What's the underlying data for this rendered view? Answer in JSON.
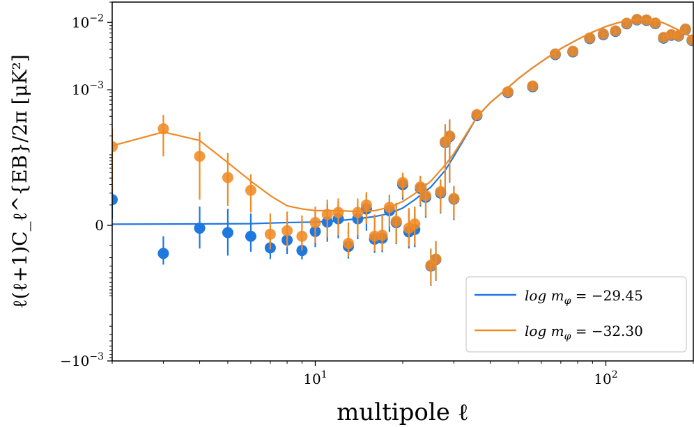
{
  "chart_data": {
    "type": "scatter",
    "xlabel": "multipole ℓ",
    "ylabel": "ℓ(ℓ+1)C_ℓ^{EB}/2π [μK²]",
    "x_scale": "log",
    "y_scale": "symlog",
    "xlim": [
      2,
      200
    ],
    "ylim": [
      -0.001,
      0.02
    ],
    "grid": false,
    "legend_position": "lower-right",
    "x_ticks": [
      {
        "value": 10,
        "base": "10",
        "exp": "1"
      },
      {
        "value": 100,
        "base": "10",
        "exp": "2"
      }
    ],
    "y_ticks": [
      {
        "value": 0.01,
        "base": "10",
        "exp": "−2"
      },
      {
        "value": 0.001,
        "base": "10",
        "exp": "−3"
      },
      {
        "value": 0,
        "base": "0",
        "exp": ""
      },
      {
        "value": -0.001,
        "base": "−10",
        "exp": "−3"
      }
    ],
    "series": [
      {
        "name": "log m_φ = −29.45",
        "legend_label": "log m",
        "legend_sub": "φ",
        "legend_value": " = −29.45",
        "color": "#1f77e0",
        "model_x": [
          2,
          4,
          6,
          8,
          10,
          12,
          14,
          16,
          18,
          20,
          22,
          25,
          28,
          30,
          33,
          36,
          40,
          45,
          50,
          56,
          63,
          70,
          80,
          90,
          100,
          110,
          120,
          130,
          140,
          150,
          160,
          175,
          190,
          200
        ],
        "model_y": [
          4e-07,
          5e-07,
          6e-07,
          1e-06,
          1.2e-06,
          1.7e-06,
          2.5e-06,
          3.5e-06,
          5e-06,
          8e-06,
          1.4e-05,
          2.7e-05,
          5.5e-05,
          9.5e-05,
          0.0002,
          0.00039,
          0.00064,
          0.00099,
          0.00147,
          0.00213,
          0.00302,
          0.0041,
          0.0056,
          0.0072,
          0.0087,
          0.0099,
          0.0107,
          0.0111,
          0.0111,
          0.0106,
          0.0096,
          0.008,
          0.0066,
          0.006
        ],
        "points": [
          {
            "x": 2,
            "y": 1.4e-05,
            "lo": 2.5e-06,
            "hi": 2.8e-05
          },
          {
            "x": 3,
            "y": -1.6e-05,
            "lo": -2.8e-05,
            "hi": -4.5e-06
          },
          {
            "x": 4,
            "y": -1e-06,
            "lo": -1.2e-05,
            "hi": 9e-06
          },
          {
            "x": 5,
            "y": -2.8e-06,
            "lo": -1.8e-05,
            "hi": 7.5e-06
          },
          {
            "x": 6,
            "y": -4.5e-06,
            "lo": -1.45e-05,
            "hi": 5e-06
          },
          {
            "x": 7,
            "y": -1.15e-05,
            "lo": -2.15e-05,
            "hi": -2e-06
          },
          {
            "x": 8,
            "y": -6.5e-06,
            "lo": -1.65e-05,
            "hi": 3e-06
          },
          {
            "x": 9,
            "y": -1.35e-05,
            "lo": -2.2e-05,
            "hi": -5e-06
          },
          {
            "x": 10,
            "y": -2.3e-06,
            "lo": -1.1e-05,
            "hi": 7e-06
          },
          {
            "x": 11,
            "y": 1.2e-06,
            "lo": -7.5e-06,
            "hi": 1.1e-05
          },
          {
            "x": 12,
            "y": 2.5e-06,
            "lo": -5.5e-06,
            "hi": 1.2e-05
          },
          {
            "x": 13,
            "y": -1.05e-05,
            "lo": -2.1e-05,
            "hi": -1.5e-06
          },
          {
            "x": 14,
            "y": 2.5e-06,
            "lo": -6e-06,
            "hi": 1.15e-05
          },
          {
            "x": 15,
            "y": 7.5e-06,
            "lo": -2e-06,
            "hi": 1.9e-05
          },
          {
            "x": 16,
            "y": -6e-06,
            "lo": -1.55e-05,
            "hi": 3.5e-06
          },
          {
            "x": 17,
            "y": -5.5e-06,
            "lo": -1.5e-05,
            "hi": 4e-06
          },
          {
            "x": 18,
            "y": 6.5e-06,
            "lo": -2.5e-06,
            "hi": 1.8e-05
          },
          {
            "x": 19,
            "y": 1e-06,
            "lo": -9e-06,
            "hi": 1.1e-05
          },
          {
            "x": 20,
            "y": 3e-05,
            "lo": 1.4e-05,
            "hi": 4.6e-05
          },
          {
            "x": 21,
            "y": -2.5e-06,
            "lo": -1.2e-05,
            "hi": 6.5e-06
          },
          {
            "x": 22,
            "y": -1.5e-06,
            "lo": -1.1e-05,
            "hi": 7.5e-06
          },
          {
            "x": 23,
            "y": 2.5e-05,
            "lo": 9e-06,
            "hi": 4.2e-05
          },
          {
            "x": 24,
            "y": 1.6e-05,
            "lo": 3e-06,
            "hi": 3e-05
          },
          {
            "x": 25,
            "y": -3e-05,
            "lo": -6.8e-05,
            "hi": -1.3e-05
          },
          {
            "x": 26,
            "y": -2.2e-05,
            "lo": -5.6e-05,
            "hi": -7.5e-06
          },
          {
            "x": 27,
            "y": 2e-05,
            "lo": 5e-06,
            "hi": 3.6e-05
          },
          {
            "x": 28,
            "y": 0.000158,
            "lo": 2.3e-05,
            "hi": 0.0003
          },
          {
            "x": 29,
            "y": 0.000195,
            "lo": 3.3e-05,
            "hi": 0.000357
          },
          {
            "x": 30,
            "y": 1.45e-05,
            "lo": 2e-06,
            "hi": 2.8e-05
          },
          {
            "x": 36,
            "y": 0.00041,
            "lo": 0.00036,
            "hi": 0.00046
          },
          {
            "x": 46,
            "y": 0.00091,
            "lo": 0.00075,
            "hi": 0.00107
          },
          {
            "x": 56,
            "y": 0.00111,
            "lo": 0.00093,
            "hi": 0.00129
          },
          {
            "x": 67,
            "y": 0.00334,
            "lo": 0.0029,
            "hi": 0.0038
          },
          {
            "x": 77,
            "y": 0.00366,
            "lo": 0.0032,
            "hi": 0.0041
          },
          {
            "x": 88,
            "y": 0.00577,
            "lo": 0.0051,
            "hi": 0.0065
          },
          {
            "x": 98,
            "y": 0.0066,
            "lo": 0.0059,
            "hi": 0.0073
          },
          {
            "x": 108,
            "y": 0.00735,
            "lo": 0.0066,
            "hi": 0.0081
          },
          {
            "x": 118,
            "y": 0.00955,
            "lo": 0.0086,
            "hi": 0.0105
          },
          {
            "x": 128,
            "y": 0.0109,
            "lo": 0.0098,
            "hi": 0.012
          },
          {
            "x": 138,
            "y": 0.0107,
            "lo": 0.0096,
            "hi": 0.0118
          },
          {
            "x": 148,
            "y": 0.0096,
            "lo": 0.0086,
            "hi": 0.0106
          },
          {
            "x": 158,
            "y": 0.00585,
            "lo": 0.0052,
            "hi": 0.0065
          },
          {
            "x": 168,
            "y": 0.00645,
            "lo": 0.0058,
            "hi": 0.0071
          },
          {
            "x": 178,
            "y": 0.0063,
            "lo": 0.0057,
            "hi": 0.0069
          },
          {
            "x": 188,
            "y": 0.00785,
            "lo": 0.0071,
            "hi": 0.0086
          },
          {
            "x": 198,
            "y": 0.0054,
            "lo": 0.0049,
            "hi": 0.0059
          }
        ]
      },
      {
        "name": "log m_φ = −32.30",
        "legend_label": "log m",
        "legend_sub": "φ",
        "legend_value": " = −32.30",
        "color": "#f08a24",
        "model_x": [
          2,
          3,
          4,
          5,
          6,
          7,
          8,
          9,
          10,
          11,
          12,
          14,
          16,
          18,
          20,
          22,
          25,
          28,
          30,
          33,
          36,
          40,
          45,
          50,
          56,
          63,
          70,
          80,
          90,
          100,
          110,
          120,
          130,
          140,
          150,
          160,
          175,
          190,
          200
        ],
        "model_y": [
          0.00014,
          0.00023,
          0.00017,
          7.5e-05,
          3.5e-05,
          1.75e-05,
          9.5e-06,
          7.5e-06,
          6.5e-06,
          6.5e-06,
          6.5e-06,
          6e-06,
          6.5e-06,
          8.5e-06,
          1.25e-05,
          1.95e-05,
          3.5e-05,
          6.8e-05,
          0.000105,
          0.00021,
          0.00039,
          0.00064,
          0.00099,
          0.00147,
          0.00213,
          0.00302,
          0.0041,
          0.0056,
          0.0072,
          0.0087,
          0.0099,
          0.0107,
          0.0111,
          0.0111,
          0.0106,
          0.0096,
          0.008,
          0.0066,
          0.006
        ],
        "points": [
          {
            "x": 2,
            "y": 0.000136,
            "lo": 2.2e-05,
            "hi": 0.00026
          },
          {
            "x": 3,
            "y": 0.000258,
            "lo": 9.5e-05,
            "hi": 0.00042
          },
          {
            "x": 4,
            "y": 9.5e-05,
            "lo": 1.4e-05,
            "hi": 0.00023
          },
          {
            "x": 5,
            "y": 4.1e-05,
            "lo": 9.5e-06,
            "hi": 0.000108
          },
          {
            "x": 6,
            "y": 2.3e-05,
            "lo": 5.5e-06,
            "hi": 4.7e-05
          },
          {
            "x": 7,
            "y": -3.5e-06,
            "lo": -1.25e-05,
            "hi": 5e-06
          },
          {
            "x": 8,
            "y": -2e-06,
            "lo": -1.1e-05,
            "hi": 6e-06
          },
          {
            "x": 9,
            "y": -4.5e-06,
            "lo": -1.35e-05,
            "hi": 4e-06
          },
          {
            "x": 10,
            "y": 1e-06,
            "lo": -8e-06,
            "hi": 9e-06
          },
          {
            "x": 11,
            "y": 4.5e-06,
            "lo": -5e-06,
            "hi": 1.4e-05
          },
          {
            "x": 12,
            "y": 5.5e-06,
            "lo": -4e-06,
            "hi": 1.5e-05
          },
          {
            "x": 13,
            "y": -8.5e-06,
            "lo": -1.9e-05,
            "hi": 1e-06
          },
          {
            "x": 14,
            "y": 5.5e-06,
            "lo": -4e-06,
            "hi": 1.5e-05
          },
          {
            "x": 15,
            "y": 1e-05,
            "lo": 5e-07,
            "hi": 2.1e-05
          },
          {
            "x": 16,
            "y": -4.5e-06,
            "lo": -1.4e-05,
            "hi": 4.5e-06
          },
          {
            "x": 17,
            "y": -4e-06,
            "lo": -1.35e-05,
            "hi": 4.5e-06
          },
          {
            "x": 18,
            "y": 8.5e-06,
            "lo": -5e-07,
            "hi": 1.85e-05
          },
          {
            "x": 19,
            "y": 1.5e-06,
            "lo": -8.5e-06,
            "hi": 1.15e-05
          },
          {
            "x": 20,
            "y": 3.3e-05,
            "lo": 1.6e-05,
            "hi": 5e-05
          },
          {
            "x": 21,
            "y": -1e-06,
            "lo": -1.05e-05,
            "hi": 8e-06
          },
          {
            "x": 22,
            "y": 5e-07,
            "lo": -9.5e-06,
            "hi": 9e-06
          },
          {
            "x": 23,
            "y": 2.7e-05,
            "lo": 1e-05,
            "hi": 4.4e-05
          },
          {
            "x": 24,
            "y": 1.75e-05,
            "lo": 3.5e-06,
            "hi": 3.2e-05
          },
          {
            "x": 25,
            "y": -2.9e-05,
            "lo": -6.7e-05,
            "hi": -1.2e-05
          },
          {
            "x": 26,
            "y": -2.15e-05,
            "lo": -5.5e-05,
            "hi": -7e-06
          },
          {
            "x": 27,
            "y": 2.15e-05,
            "lo": 5.5e-06,
            "hi": 3.8e-05
          },
          {
            "x": 28,
            "y": 0.000162,
            "lo": 2.4e-05,
            "hi": 0.000305
          },
          {
            "x": 29,
            "y": 0.0002,
            "lo": 3.4e-05,
            "hi": 0.000362
          },
          {
            "x": 30,
            "y": 1.5e-05,
            "lo": 2.5e-06,
            "hi": 2.85e-05
          },
          {
            "x": 36,
            "y": 0.000425,
            "lo": 0.00037,
            "hi": 0.00048
          },
          {
            "x": 46,
            "y": 0.000935,
            "lo": 0.00077,
            "hi": 0.0011
          },
          {
            "x": 56,
            "y": 0.00114,
            "lo": 0.00095,
            "hi": 0.00133
          },
          {
            "x": 67,
            "y": 0.00342,
            "lo": 0.00298,
            "hi": 0.00386
          },
          {
            "x": 77,
            "y": 0.00375,
            "lo": 0.00328,
            "hi": 0.00422
          },
          {
            "x": 88,
            "y": 0.0059,
            "lo": 0.0052,
            "hi": 0.0066
          },
          {
            "x": 98,
            "y": 0.00675,
            "lo": 0.006,
            "hi": 0.0075
          },
          {
            "x": 108,
            "y": 0.0075,
            "lo": 0.0067,
            "hi": 0.0083
          },
          {
            "x": 118,
            "y": 0.00975,
            "lo": 0.0088,
            "hi": 0.0107
          },
          {
            "x": 128,
            "y": 0.0111,
            "lo": 0.01,
            "hi": 0.0122
          },
          {
            "x": 138,
            "y": 0.0109,
            "lo": 0.0098,
            "hi": 0.012
          },
          {
            "x": 148,
            "y": 0.0098,
            "lo": 0.0088,
            "hi": 0.0108
          },
          {
            "x": 158,
            "y": 0.006,
            "lo": 0.0054,
            "hi": 0.0066
          },
          {
            "x": 168,
            "y": 0.0066,
            "lo": 0.006,
            "hi": 0.0072
          },
          {
            "x": 178,
            "y": 0.0064,
            "lo": 0.0058,
            "hi": 0.007
          },
          {
            "x": 188,
            "y": 0.008,
            "lo": 0.0072,
            "hi": 0.0088
          },
          {
            "x": 198,
            "y": 0.0055,
            "lo": 0.005,
            "hi": 0.006
          }
        ]
      }
    ]
  }
}
